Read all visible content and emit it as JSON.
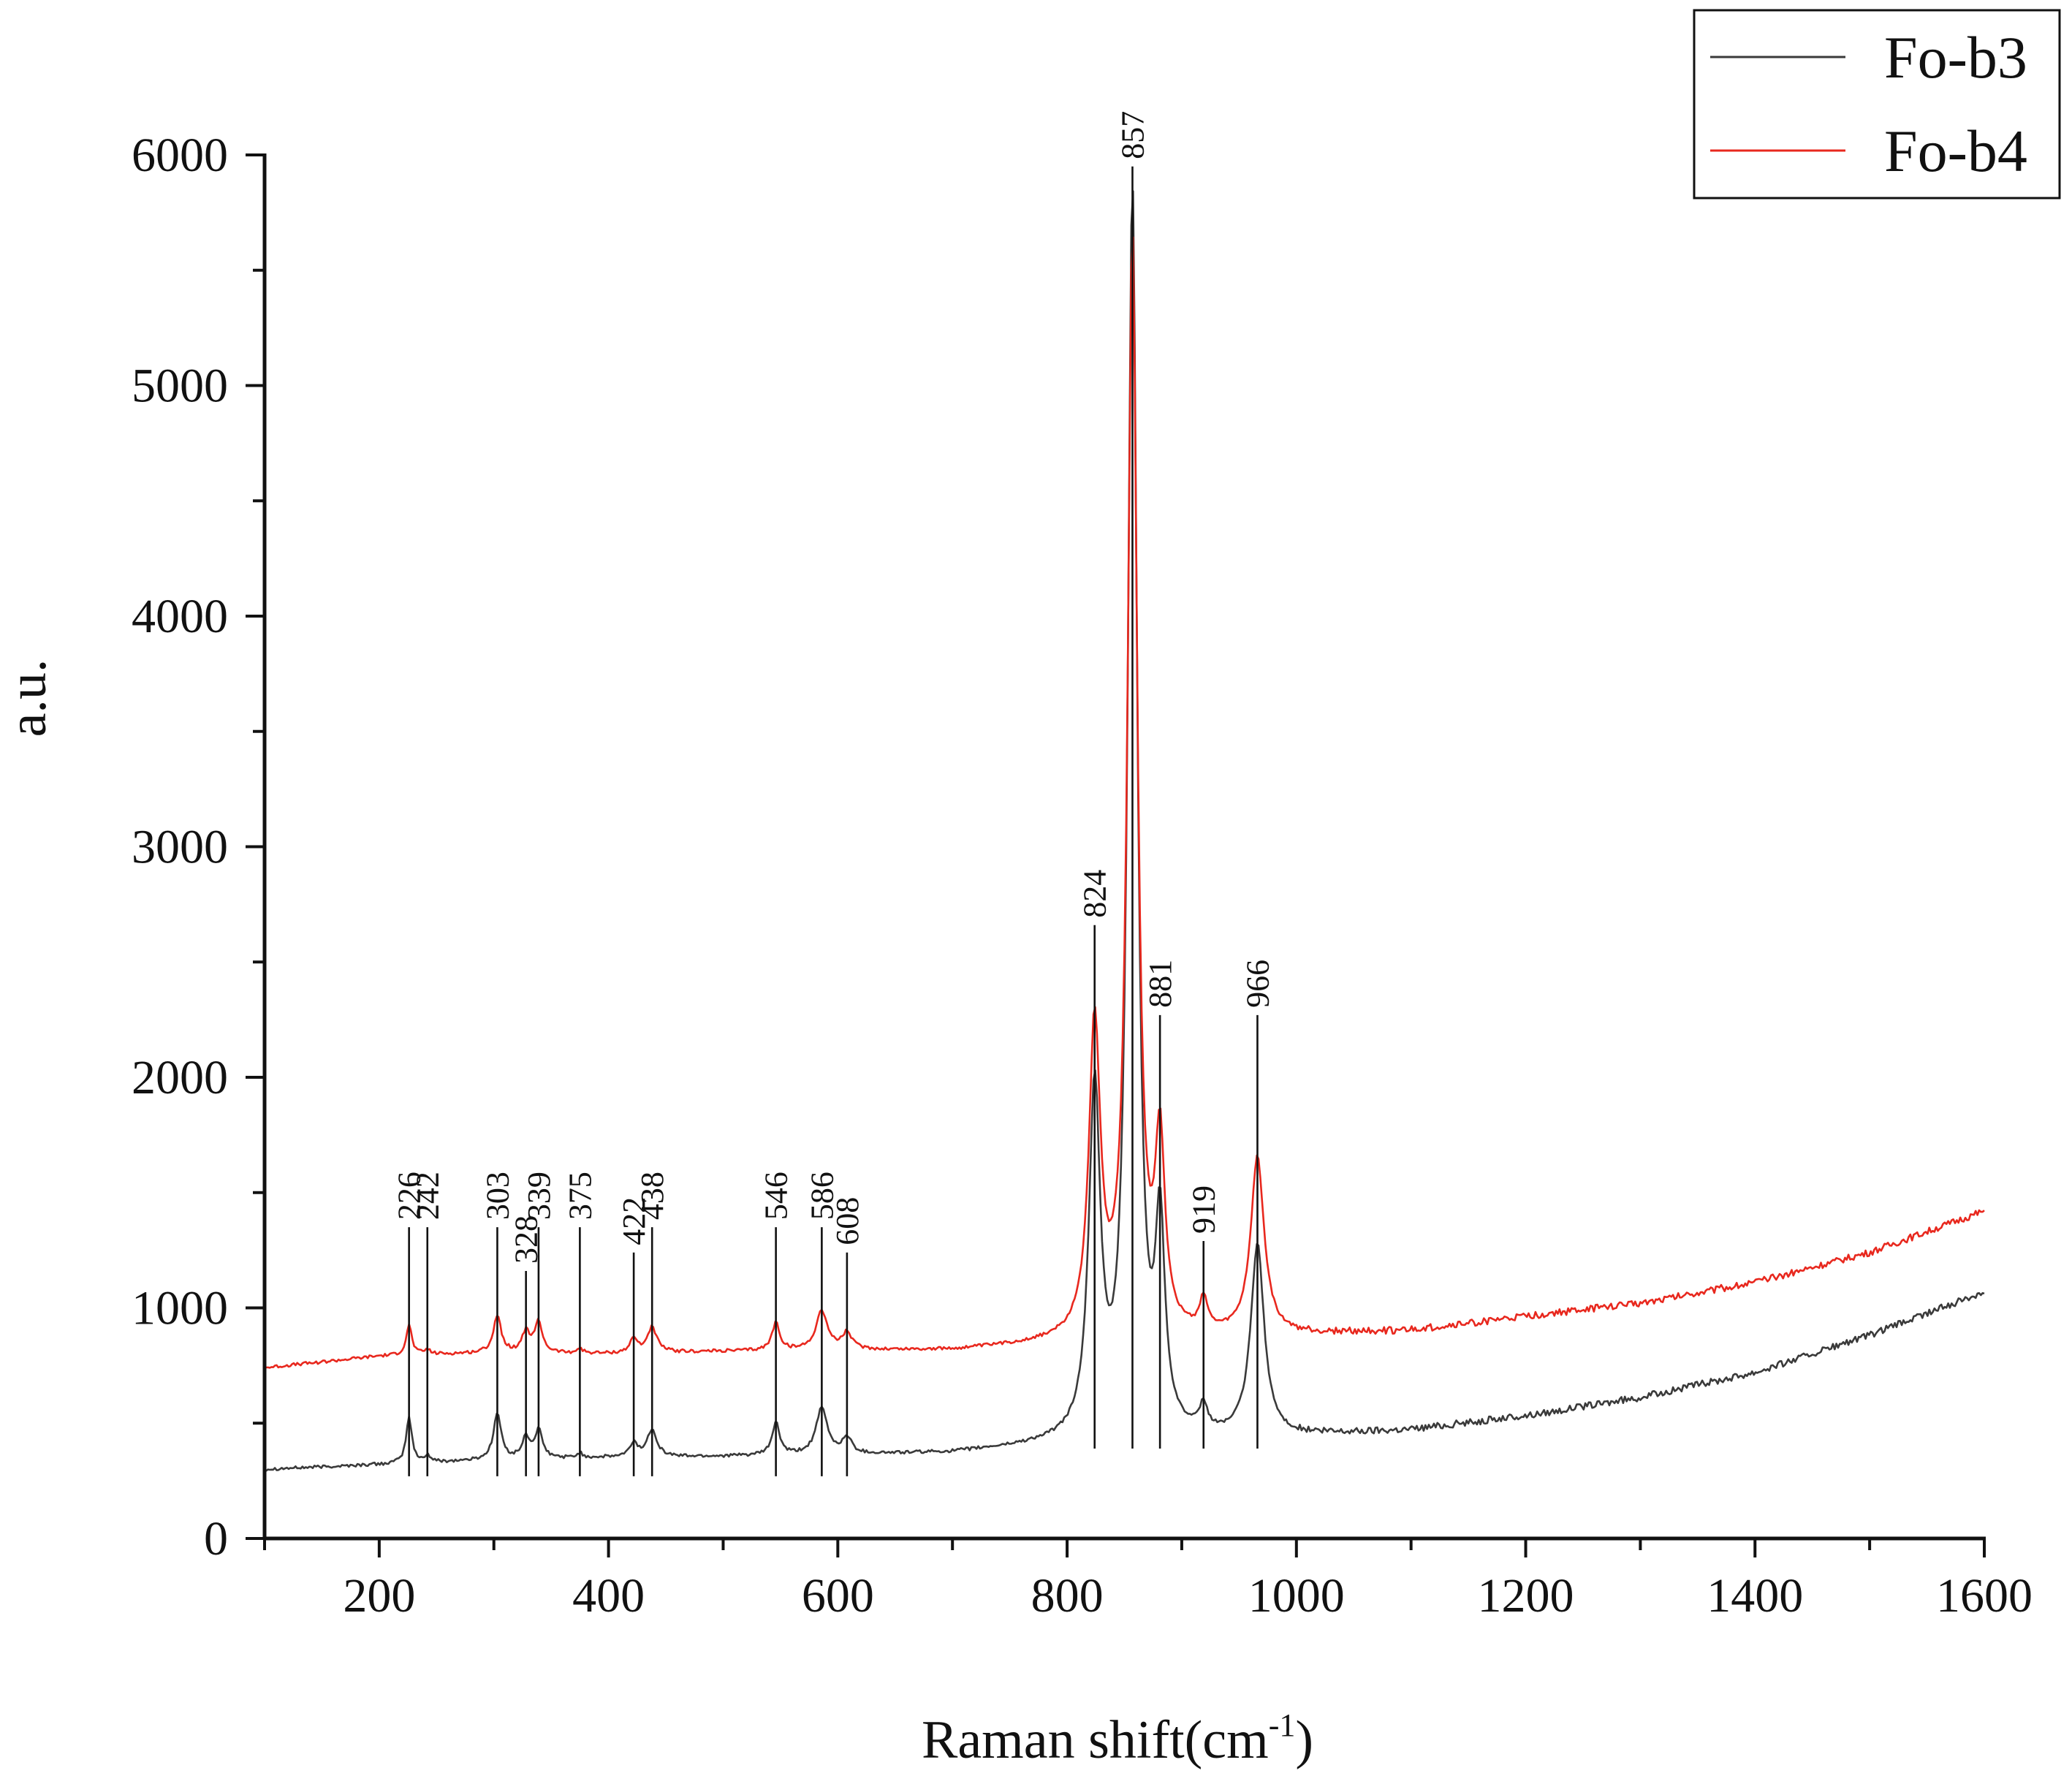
{
  "chart_data": {
    "type": "line",
    "title": "",
    "xlabel": "Raman shift(cm",
    "xlabel_sup": "-1",
    "xlabel_close": ")",
    "ylabel": "a.u.",
    "xlim": [
      100,
      1600
    ],
    "ylim": [
      0,
      6000
    ],
    "x_ticks": [
      200,
      400,
      600,
      800,
      1000,
      1200,
      1400,
      1600
    ],
    "y_ticks": [
      0,
      1000,
      2000,
      3000,
      4000,
      5000,
      6000
    ],
    "x_tick_labels": [
      "200",
      "400",
      "600",
      "800",
      "1000",
      "1200",
      "1400",
      "1600"
    ],
    "y_tick_labels": [
      "0",
      "1000",
      "2000",
      "3000",
      "4000",
      "5000",
      "6000"
    ],
    "grid": false,
    "legend_position": "top-right",
    "series": [
      {
        "name": "Fo-b3",
        "color": "#3a3a3a",
        "baseline": [
          [
            100,
            300
          ],
          [
            200,
            320
          ],
          [
            300,
            340
          ],
          [
            400,
            350
          ],
          [
            500,
            355
          ],
          [
            600,
            360
          ],
          [
            700,
            370
          ],
          [
            780,
            400
          ],
          [
            1000,
            440
          ],
          [
            1100,
            470
          ],
          [
            1200,
            530
          ],
          [
            1300,
            610
          ],
          [
            1400,
            720
          ],
          [
            1500,
            880
          ],
          [
            1600,
            1070
          ]
        ],
        "peaks": [
          [
            226,
            200,
            3
          ],
          [
            242,
            30,
            3
          ],
          [
            303,
            200,
            4
          ],
          [
            328,
            90,
            4
          ],
          [
            339,
            120,
            4
          ],
          [
            375,
            20,
            3
          ],
          [
            422,
            60,
            4
          ],
          [
            438,
            120,
            5
          ],
          [
            546,
            140,
            4
          ],
          [
            586,
            200,
            6
          ],
          [
            608,
            70,
            5
          ],
          [
            824,
            1500,
            6
          ],
          [
            857,
            5400,
            5
          ],
          [
            881,
            870,
            5
          ],
          [
            919,
            110,
            4
          ],
          [
            966,
            830,
            7
          ]
        ]
      },
      {
        "name": "Fo-b4",
        "color": "#e8281e",
        "baseline": [
          [
            100,
            740
          ],
          [
            200,
            790
          ],
          [
            300,
            805
          ],
          [
            400,
            800
          ],
          [
            500,
            810
          ],
          [
            600,
            815
          ],
          [
            700,
            815
          ],
          [
            780,
            840
          ],
          [
            1000,
            880
          ],
          [
            1100,
            900
          ],
          [
            1200,
            960
          ],
          [
            1300,
            1020
          ],
          [
            1400,
            1110
          ],
          [
            1500,
            1240
          ],
          [
            1600,
            1420
          ]
        ],
        "peaks": [
          [
            226,
            130,
            3
          ],
          [
            242,
            20,
            3
          ],
          [
            303,
            160,
            4
          ],
          [
            328,
            90,
            4
          ],
          [
            339,
            130,
            4
          ],
          [
            375,
            20,
            3
          ],
          [
            422,
            60,
            4
          ],
          [
            438,
            110,
            5
          ],
          [
            546,
            120,
            4
          ],
          [
            586,
            170,
            6
          ],
          [
            608,
            70,
            5
          ],
          [
            824,
            1350,
            6
          ],
          [
            857,
            4750,
            5
          ],
          [
            881,
            800,
            5
          ],
          [
            919,
            140,
            4
          ],
          [
            966,
            770,
            7
          ]
        ]
      }
    ],
    "peak_markers": [
      {
        "label": "226",
        "x": 226,
        "top": 1350,
        "bottom": 270
      },
      {
        "label": "242",
        "x": 242,
        "top": 1350,
        "bottom": 270
      },
      {
        "label": "303",
        "x": 303,
        "top": 1350,
        "bottom": 270
      },
      {
        "label": "328",
        "x": 328,
        "top": 1160,
        "bottom": 270
      },
      {
        "label": "339",
        "x": 339,
        "top": 1350,
        "bottom": 270
      },
      {
        "label": "375",
        "x": 375,
        "top": 1350,
        "bottom": 270
      },
      {
        "label": "422",
        "x": 422,
        "top": 1240,
        "bottom": 270
      },
      {
        "label": "438",
        "x": 438,
        "top": 1350,
        "bottom": 270
      },
      {
        "label": "546",
        "x": 546,
        "top": 1350,
        "bottom": 270
      },
      {
        "label": "586",
        "x": 586,
        "top": 1350,
        "bottom": 270
      },
      {
        "label": "608",
        "x": 608,
        "top": 1240,
        "bottom": 270
      },
      {
        "label": "824",
        "x": 824,
        "top": 2660,
        "bottom": 390
      },
      {
        "label": "857",
        "x": 857,
        "top": 5950,
        "bottom": 390
      },
      {
        "label": "881",
        "x": 881,
        "top": 2270,
        "bottom": 390
      },
      {
        "label": "919",
        "x": 919,
        "top": 1290,
        "bottom": 390
      },
      {
        "label": "966",
        "x": 966,
        "top": 2270,
        "bottom": 390
      }
    ]
  }
}
